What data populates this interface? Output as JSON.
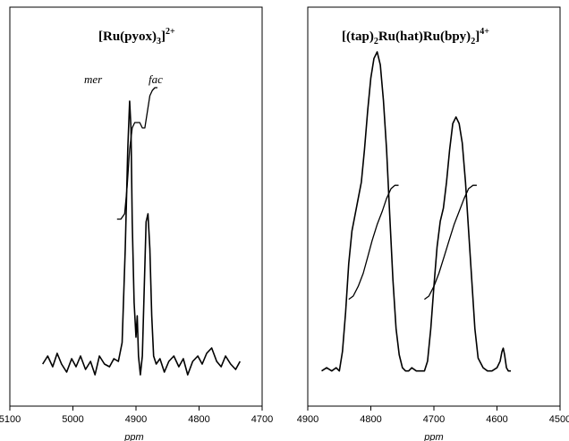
{
  "chart_data": [
    {
      "type": "line",
      "title": "[Ru(pyox)₃]²⁺",
      "title_main": "[Ru(pyox)",
      "title_sub": "3",
      "title_close": "]",
      "title_sup": "2+",
      "xlabel": "ppm",
      "xlim": [
        5100,
        4700
      ],
      "x_reversed": true,
      "x_ticks": [
        5100,
        5000,
        4900,
        4800,
        4700
      ],
      "annotations": [
        {
          "text": "mer",
          "x": 4920
        },
        {
          "text": "fac",
          "x": 4876
        }
      ],
      "series": [
        {
          "role": "spectrum",
          "x": [
            5048,
            5040,
            5032,
            5025,
            5018,
            5010,
            5002,
            4995,
            4988,
            4980,
            4972,
            4965,
            4958,
            4950,
            4942,
            4935,
            4928,
            4922,
            4917,
            4913,
            4910,
            4908,
            4906,
            4903,
            4900,
            4898,
            4896,
            4893,
            4890,
            4887,
            4884,
            4881,
            4878,
            4875,
            4872,
            4868,
            4862,
            4855,
            4848,
            4840,
            4832,
            4825,
            4818,
            4810,
            4802,
            4795,
            4788,
            4780,
            4772,
            4765,
            4758,
            4750,
            4742,
            4735
          ],
          "y": [
            0.02,
            0.05,
            0.01,
            0.06,
            0.02,
            -0.01,
            0.04,
            0.01,
            0.05,
            0.0,
            0.03,
            -0.02,
            0.05,
            0.02,
            0.01,
            0.04,
            0.03,
            0.1,
            0.45,
            0.82,
            1.0,
            0.9,
            0.55,
            0.25,
            0.12,
            0.2,
            0.05,
            -0.02,
            0.05,
            0.3,
            0.55,
            0.58,
            0.45,
            0.2,
            0.05,
            0.02,
            0.04,
            -0.01,
            0.03,
            0.05,
            0.01,
            0.04,
            -0.02,
            0.03,
            0.05,
            0.02,
            0.06,
            0.08,
            0.03,
            0.01,
            0.05,
            0.02,
            0.0,
            0.03
          ]
        },
        {
          "role": "integral",
          "x": [
            4930,
            4924,
            4918,
            4914,
            4910,
            4906,
            4902,
            4898,
            4894,
            4890,
            4886,
            4882,
            4878,
            4874,
            4870,
            4866
          ],
          "y": [
            0.56,
            0.56,
            0.58,
            0.68,
            0.82,
            0.9,
            0.92,
            0.92,
            0.92,
            0.9,
            0.9,
            0.96,
            1.02,
            1.04,
            1.05,
            1.05
          ]
        }
      ]
    },
    {
      "type": "line",
      "title": "[(tap)₂Ru(hat)Ru(bpy)₂]⁴⁺",
      "title_a": "[(tap)",
      "title_a_sub": "2",
      "title_b": "Ru(hat)Ru(bpy)",
      "title_b_sub": "2",
      "title_c": "]",
      "title_sup": "4+",
      "xlabel": "ppm",
      "xlim": [
        4900,
        4500
      ],
      "x_reversed": true,
      "x_ticks": [
        4900,
        4800,
        4700,
        4600,
        4500
      ],
      "series": [
        {
          "role": "spectrum",
          "x": [
            4878,
            4870,
            4862,
            4855,
            4850,
            4845,
            4840,
            4835,
            4830,
            4825,
            4820,
            4815,
            4810,
            4805,
            4800,
            4795,
            4790,
            4785,
            4780,
            4775,
            4770,
            4765,
            4760,
            4755,
            4750,
            4745,
            4740,
            4735,
            4728,
            4722,
            4715,
            4710,
            4705,
            4700,
            4695,
            4690,
            4685,
            4680,
            4675,
            4670,
            4665,
            4660,
            4655,
            4650,
            4645,
            4640,
            4635,
            4630,
            4622,
            4615,
            4608,
            4600,
            4595,
            4592,
            4590,
            4588,
            4585,
            4582,
            4578
          ],
          "y": [
            0.02,
            0.03,
            0.02,
            0.03,
            0.02,
            0.08,
            0.2,
            0.35,
            0.45,
            0.5,
            0.55,
            0.6,
            0.7,
            0.82,
            0.92,
            0.98,
            1.0,
            0.96,
            0.85,
            0.7,
            0.5,
            0.3,
            0.15,
            0.07,
            0.03,
            0.02,
            0.02,
            0.03,
            0.02,
            0.02,
            0.02,
            0.05,
            0.15,
            0.28,
            0.4,
            0.48,
            0.52,
            0.6,
            0.7,
            0.78,
            0.8,
            0.78,
            0.72,
            0.6,
            0.45,
            0.3,
            0.15,
            0.06,
            0.03,
            0.02,
            0.02,
            0.03,
            0.05,
            0.08,
            0.09,
            0.07,
            0.03,
            0.02,
            0.02
          ]
        },
        {
          "role": "integral",
          "x": [
            4835,
            4828,
            4820,
            4812,
            4805,
            4798,
            4790,
            4782,
            4775,
            4768,
            4762,
            4756
          ],
          "y": [
            0.24,
            0.25,
            0.28,
            0.32,
            0.37,
            0.42,
            0.47,
            0.51,
            0.55,
            0.58,
            0.59,
            0.59
          ]
        },
        {
          "role": "integral",
          "x": [
            4715,
            4708,
            4700,
            4692,
            4684,
            4676,
            4668,
            4660,
            4652,
            4645,
            4638,
            4632
          ],
          "y": [
            0.24,
            0.25,
            0.28,
            0.32,
            0.37,
            0.42,
            0.47,
            0.51,
            0.55,
            0.58,
            0.59,
            0.59
          ]
        }
      ]
    }
  ]
}
